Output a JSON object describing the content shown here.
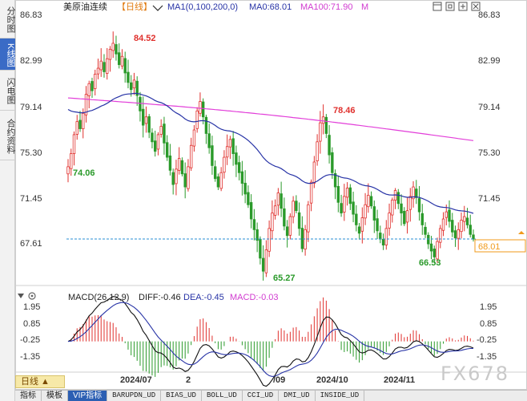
{
  "left_tabs": [
    {
      "label": "分时图",
      "active": false
    },
    {
      "label": "K线图",
      "active": true
    },
    {
      "label": "闪电图",
      "active": false
    },
    {
      "label": "合约资料",
      "active": false
    }
  ],
  "header": {
    "instrument": "美原油连续",
    "period": "【日线】",
    "ma_label": "MA1(0,100,200,0)",
    "ma0": "MA0:68.01",
    "ma100": "MA100:71.90",
    "ma_extra": "M"
  },
  "price_axis": {
    "labels": [
      "86.83",
      "82.99",
      "79.14",
      "75.30",
      "71.45",
      "67.61"
    ],
    "last_price": "68.01"
  },
  "annotations": {
    "high1": "84.52",
    "low1": "74.06",
    "high2": "78.46",
    "low2": "65.27",
    "low3": "66.53"
  },
  "macd": {
    "label": "MACD(26,12,9)",
    "diff": "DIFF:-0.46",
    "dea": "DEA:-0.45",
    "macd": "MACD:-0.03",
    "axis": [
      "1.95",
      "0.85",
      "-0.25",
      "-1.35"
    ]
  },
  "time_axis": [
    "2024/07",
    "2",
    "/09",
    "2024/10",
    "2024/11"
  ],
  "period_button": "日线 ▲",
  "bottom_tabs": [
    "指标",
    "模板",
    "VIP指标",
    "BARUPDN_UD",
    "BIAS_UD",
    "BOLL_UD",
    "CCI_UD",
    "DMI_UD",
    "INSIDE_UD"
  ],
  "watermark": "FX678",
  "colors": {
    "up": "#e0302d",
    "down": "#2a9a2a",
    "ma_blue": "#2733a6",
    "ma_magenta": "#e23ed9",
    "accent": "#2c5fb3"
  },
  "chart_data": {
    "type": "candlestick",
    "price_range": [
      64.5,
      87.2
    ],
    "macd_range": [
      -1.6,
      2.1
    ],
    "close_series": [
      74.1,
      75.2,
      76.8,
      77.9,
      77.3,
      78.6,
      80.2,
      81.1,
      80.5,
      81.9,
      82.4,
      83.0,
      82.1,
      83.2,
      84.0,
      84.5,
      83.6,
      82.7,
      83.4,
      82.0,
      81.2,
      80.6,
      81.4,
      80.1,
      78.8,
      77.6,
      78.3,
      77.0,
      76.2,
      75.4,
      76.8,
      77.5,
      76.1,
      74.9,
      73.8,
      72.6,
      73.9,
      74.8,
      73.5,
      72.4,
      74.1,
      75.9,
      77.2,
      78.8,
      79.6,
      78.3,
      76.9,
      75.7,
      74.2,
      73.1,
      72.4,
      73.6,
      74.9,
      75.8,
      76.4,
      75.2,
      74.3,
      73.6,
      72.7,
      71.8,
      70.9,
      69.7,
      68.8,
      67.9,
      66.4,
      65.3,
      67.1,
      68.9,
      70.2,
      70.8,
      71.9,
      70.6,
      69.1,
      68.3,
      69.9,
      71.2,
      70.4,
      68.9,
      67.2,
      68.8,
      70.9,
      72.8,
      74.5,
      76.2,
      77.8,
      78.3,
      76.9,
      75.1,
      73.6,
      72.4,
      71.1,
      70.2,
      71.6,
      72.3,
      71.0,
      70.1,
      69.2,
      68.5,
      69.8,
      70.9,
      71.7,
      70.8,
      69.6,
      68.7,
      68.0,
      67.5,
      68.9,
      70.2,
      71.3,
      72.1,
      71.0,
      70.2,
      69.3,
      70.4,
      71.6,
      72.4,
      71.5,
      70.3,
      69.2,
      68.4,
      67.6,
      67.0,
      66.5,
      67.8,
      68.9,
      69.7,
      70.3,
      69.5,
      68.6,
      68.1,
      68.8,
      69.6,
      69.9,
      69.2,
      68.4,
      68.0
    ],
    "ma_blue_start_end": [
      79.6,
      71.9
    ],
    "ma_magenta_start_end": [
      79.9,
      76.3
    ]
  }
}
